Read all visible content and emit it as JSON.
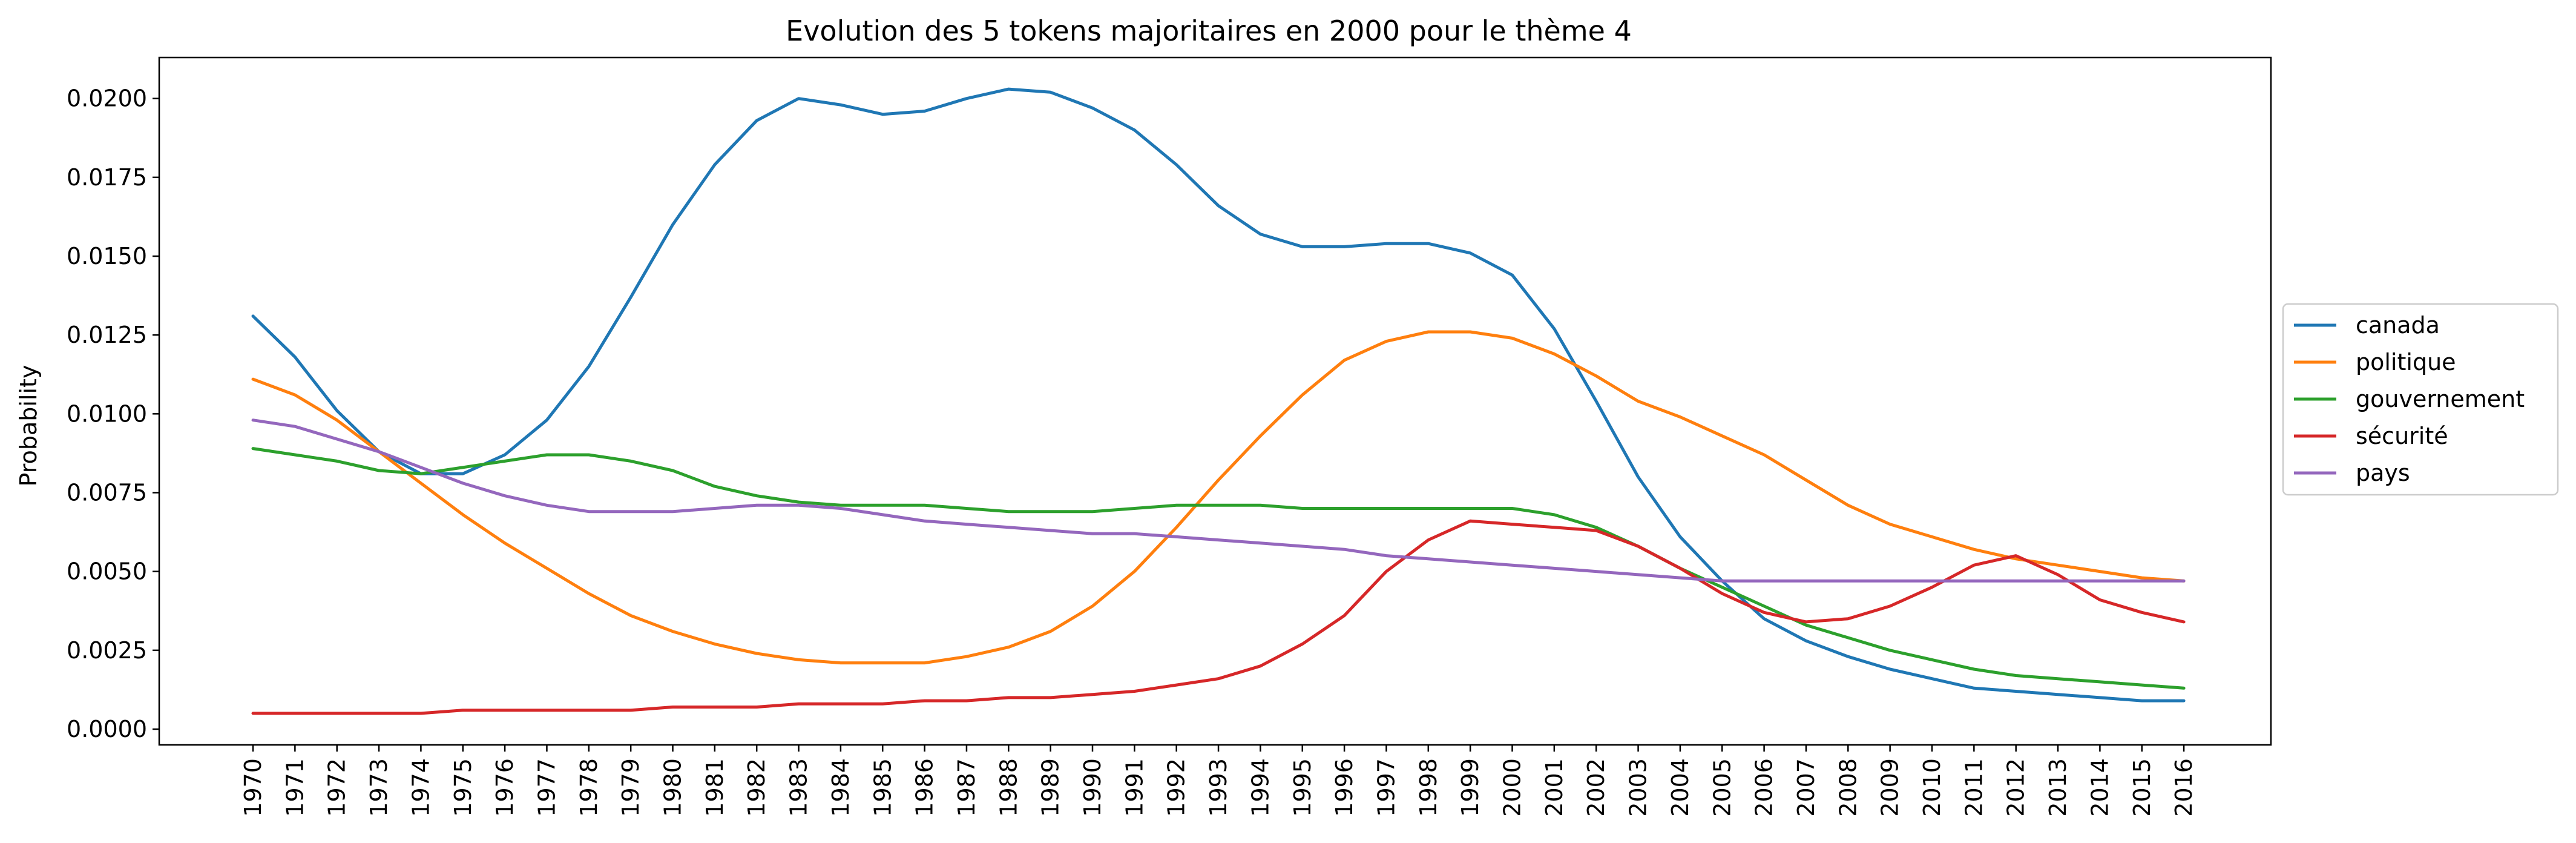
{
  "chart_data": {
    "type": "line",
    "title": "Evolution des 5 tokens majoritaires en 2000 pour le thème 4",
    "xlabel": "",
    "ylabel": "Probability",
    "ylim": [
      -0.0005,
      0.0213
    ],
    "yticks": [
      0.0,
      0.0025,
      0.005,
      0.0075,
      0.01,
      0.0125,
      0.015,
      0.0175,
      0.02
    ],
    "ytick_labels": [
      "0.0000",
      "0.0025",
      "0.0050",
      "0.0075",
      "0.0100",
      "0.0125",
      "0.0150",
      "0.0175",
      "0.0200"
    ],
    "grid": false,
    "legend_position": "outside right",
    "x": [
      "1970",
      "1971",
      "1972",
      "1973",
      "1974",
      "1975",
      "1976",
      "1977",
      "1978",
      "1979",
      "1980",
      "1981",
      "1982",
      "1983",
      "1984",
      "1985",
      "1986",
      "1987",
      "1988",
      "1989",
      "1990",
      "1991",
      "1992",
      "1993",
      "1994",
      "1995",
      "1996",
      "1997",
      "1998",
      "1999",
      "2000",
      "2001",
      "2002",
      "2003",
      "2004",
      "2005",
      "2006",
      "2007",
      "2008",
      "2009",
      "2010",
      "2011",
      "2012",
      "2013",
      "2014",
      "2015",
      "2016"
    ],
    "series": [
      {
        "name": "canada",
        "color": "#1f77b4",
        "values": [
          0.0131,
          0.0118,
          0.0101,
          0.0088,
          0.0081,
          0.0081,
          0.0087,
          0.0098,
          0.0115,
          0.0137,
          0.016,
          0.0179,
          0.0193,
          0.02,
          0.0198,
          0.0195,
          0.0196,
          0.02,
          0.0203,
          0.0202,
          0.0197,
          0.019,
          0.0179,
          0.0166,
          0.0157,
          0.0153,
          0.0153,
          0.0154,
          0.0154,
          0.0151,
          0.0144,
          0.0127,
          0.0104,
          0.008,
          0.0061,
          0.0047,
          0.0035,
          0.0028,
          0.0023,
          0.0019,
          0.0016,
          0.0013,
          0.0012,
          0.0011,
          0.001,
          0.0009,
          0.0009
        ]
      },
      {
        "name": "politique",
        "color": "#ff7f0e",
        "values": [
          0.0111,
          0.0106,
          0.0098,
          0.0088,
          0.0078,
          0.0068,
          0.0059,
          0.0051,
          0.0043,
          0.0036,
          0.0031,
          0.0027,
          0.0024,
          0.0022,
          0.0021,
          0.0021,
          0.0021,
          0.0023,
          0.0026,
          0.0031,
          0.0039,
          0.005,
          0.0064,
          0.0079,
          0.0093,
          0.0106,
          0.0117,
          0.0123,
          0.0126,
          0.0126,
          0.0124,
          0.0119,
          0.0112,
          0.0104,
          0.0099,
          0.0093,
          0.0087,
          0.0079,
          0.0071,
          0.0065,
          0.0061,
          0.0057,
          0.0054,
          0.0052,
          0.005,
          0.0048,
          0.0047
        ]
      },
      {
        "name": "gouvernement",
        "color": "#2ca02c",
        "values": [
          0.0089,
          0.0087,
          0.0085,
          0.0082,
          0.0081,
          0.0083,
          0.0085,
          0.0087,
          0.0087,
          0.0085,
          0.0082,
          0.0077,
          0.0074,
          0.0072,
          0.0071,
          0.0071,
          0.0071,
          0.007,
          0.0069,
          0.0069,
          0.0069,
          0.007,
          0.0071,
          0.0071,
          0.0071,
          0.007,
          0.007,
          0.007,
          0.007,
          0.007,
          0.007,
          0.0068,
          0.0064,
          0.0058,
          0.0051,
          0.0045,
          0.0039,
          0.0033,
          0.0029,
          0.0025,
          0.0022,
          0.0019,
          0.0017,
          0.0016,
          0.0015,
          0.0014,
          0.0013
        ]
      },
      {
        "name": "sécurité",
        "color": "#d62728",
        "values": [
          0.0005,
          0.0005,
          0.0005,
          0.0005,
          0.0005,
          0.0006,
          0.0006,
          0.0006,
          0.0006,
          0.0006,
          0.0007,
          0.0007,
          0.0007,
          0.0008,
          0.0008,
          0.0008,
          0.0009,
          0.0009,
          0.001,
          0.001,
          0.0011,
          0.0012,
          0.0014,
          0.0016,
          0.002,
          0.0027,
          0.0036,
          0.005,
          0.006,
          0.0066,
          0.0065,
          0.0064,
          0.0063,
          0.0058,
          0.0051,
          0.0043,
          0.0037,
          0.0034,
          0.0035,
          0.0039,
          0.0045,
          0.0052,
          0.0055,
          0.0049,
          0.0041,
          0.0037,
          0.0034
        ]
      },
      {
        "name": "pays",
        "color": "#9467bd",
        "values": [
          0.0098,
          0.0096,
          0.0092,
          0.0088,
          0.0083,
          0.0078,
          0.0074,
          0.0071,
          0.0069,
          0.0069,
          0.0069,
          0.007,
          0.0071,
          0.0071,
          0.007,
          0.0068,
          0.0066,
          0.0065,
          0.0064,
          0.0063,
          0.0062,
          0.0062,
          0.0061,
          0.006,
          0.0059,
          0.0058,
          0.0057,
          0.0055,
          0.0054,
          0.0053,
          0.0052,
          0.0051,
          0.005,
          0.0049,
          0.0048,
          0.0047,
          0.0047,
          0.0047,
          0.0047,
          0.0047,
          0.0047,
          0.0047,
          0.0047,
          0.0047,
          0.0047,
          0.0047,
          0.0047
        ]
      }
    ]
  }
}
